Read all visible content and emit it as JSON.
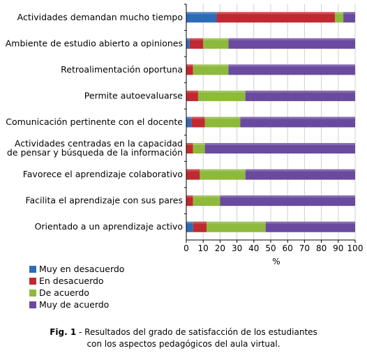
{
  "chart_data": {
    "type": "bar",
    "orientation": "horizontal",
    "stacked": true,
    "categories": [
      "Actividades demandan mucho tiempo",
      "Ambiente de estudio abierto a opiniones",
      "Retroalimentación oportuna",
      "Permite autoevaluarse",
      "Comunicación pertinente con el docente",
      [
        "Actividades centradas en la capacidad",
        "de pensar y búsqueda de la información"
      ],
      "Favorece el aprendizaje colaborativo",
      "Facilita el aprendizaje con sus pares",
      "Orientado a un aprendizaje activo"
    ],
    "series": [
      {
        "name": "Muy en desacuerdo",
        "color": "#2e6bb7",
        "values": [
          18,
          2,
          0,
          0,
          3,
          0,
          0,
          0,
          4
        ]
      },
      {
        "name": "En desacuerdo",
        "color": "#c0292f",
        "values": [
          70,
          8,
          4,
          7,
          8,
          4,
          8,
          4,
          8
        ]
      },
      {
        "name": "De acuerdo",
        "color": "#8db93c",
        "values": [
          5,
          15,
          21,
          28,
          21,
          7,
          27,
          16,
          35
        ]
      },
      {
        "name": "Muy de acuerdo",
        "color": "#6a4a9e",
        "values": [
          7,
          75,
          75,
          65,
          68,
          89,
          65,
          80,
          53
        ]
      }
    ],
    "xlim": [
      0,
      100
    ],
    "xticks": [
      0,
      10,
      20,
      30,
      40,
      50,
      60,
      70,
      80,
      90,
      100
    ],
    "xlabel": "%",
    "legend_position": "bottom-left"
  },
  "caption": {
    "label": "Fig. 1",
    "text_line1": " - Resultados del grado de satisfacción de los estudiantes",
    "text_line2": "con los aspectos pedagógicos del aula virtual."
  }
}
